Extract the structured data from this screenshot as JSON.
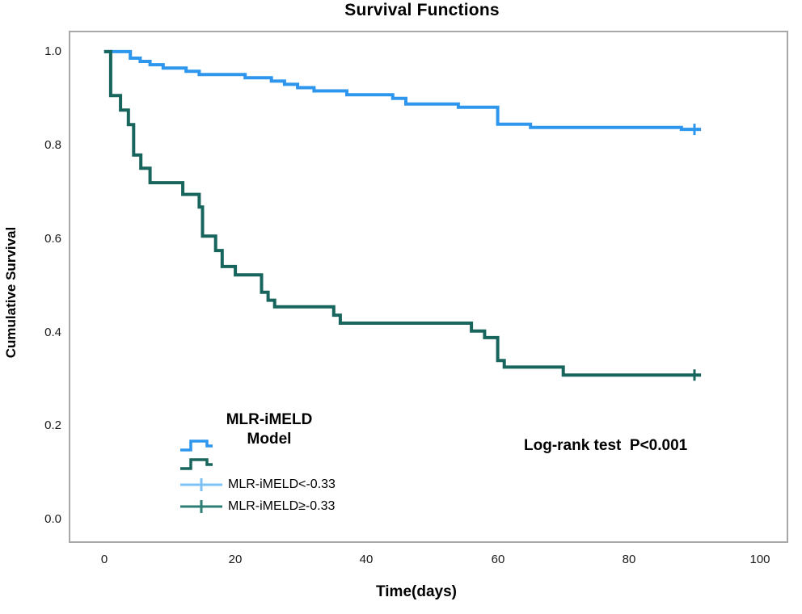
{
  "title": "Survival Functions",
  "axes": {
    "x_label": "Time(days)",
    "y_label": "Cumulative Survival",
    "x_ticks": [
      {
        "v": 0,
        "label": "0"
      },
      {
        "v": 20,
        "label": "20"
      },
      {
        "v": 40,
        "label": "40"
      },
      {
        "v": 60,
        "label": "60"
      },
      {
        "v": 80,
        "label": "80"
      },
      {
        "v": 100,
        "label": "100"
      }
    ],
    "y_ticks": [
      {
        "v": 0.0,
        "label": "0.0"
      },
      {
        "v": 0.2,
        "label": "0.2"
      },
      {
        "v": 0.4,
        "label": "0.4"
      },
      {
        "v": 0.6,
        "label": "0.6"
      },
      {
        "v": 0.8,
        "label": "0.8"
      },
      {
        "v": 1.0,
        "label": "1.0"
      }
    ]
  },
  "legend": {
    "title_line1": "MLR-iMELD",
    "title_line2": "Model",
    "items": [
      {
        "label": "MLR-iMELD<-0.33"
      },
      {
        "label": "MLR-iMELD≥-0.33"
      }
    ]
  },
  "annotation": {
    "log_rank": "Log-rank test  P<0.001"
  },
  "colors": {
    "curve_blue": "#2E96EC",
    "curve_teal": "#17655C",
    "censor_blue": "#7CC2F4",
    "censor_teal": "#2C7D73",
    "frame_border": "#a8a8a8"
  },
  "chart_data": {
    "type": "line",
    "subtype": "kaplan-meier-step",
    "title": "Survival Functions",
    "xlabel": "Time(days)",
    "ylabel": "Cumulative Survival",
    "xlim": [
      -5.15,
      104.05
    ],
    "ylim": [
      -0.046,
      1.0412
    ],
    "grid": false,
    "legend_position": "inside-lower-left",
    "series": [
      {
        "name": "MLR-iMELD<-0.33",
        "color": "#2E96EC",
        "end_x": 91,
        "censor_marks": [
          [
            90,
            0.834
          ]
        ],
        "points": [
          [
            0,
            1.0
          ],
          [
            4,
            0.986
          ],
          [
            5.5,
            0.979
          ],
          [
            7,
            0.972
          ],
          [
            9,
            0.965
          ],
          [
            12.5,
            0.958
          ],
          [
            14.5,
            0.951
          ],
          [
            21.5,
            0.944
          ],
          [
            25.5,
            0.937
          ],
          [
            27.5,
            0.93
          ],
          [
            29.5,
            0.923
          ],
          [
            32,
            0.916
          ],
          [
            37,
            0.908
          ],
          [
            44,
            0.9
          ],
          [
            46,
            0.888
          ],
          [
            54,
            0.881
          ],
          [
            60,
            0.845
          ],
          [
            65,
            0.838
          ],
          [
            88,
            0.834
          ]
        ]
      },
      {
        "name": "MLR-iMELD≥-0.33",
        "color": "#17655C",
        "end_x": 91,
        "censor_marks": [
          [
            90,
            0.309
          ]
        ],
        "points": [
          [
            0,
            1.0
          ],
          [
            1,
            0.906
          ],
          [
            2.5,
            0.875
          ],
          [
            3.7,
            0.844
          ],
          [
            4.5,
            0.779
          ],
          [
            5.6,
            0.751
          ],
          [
            7,
            0.72
          ],
          [
            12,
            0.695
          ],
          [
            14.5,
            0.668
          ],
          [
            15,
            0.606
          ],
          [
            17,
            0.575
          ],
          [
            18,
            0.541
          ],
          [
            20,
            0.523
          ],
          [
            24,
            0.486
          ],
          [
            25,
            0.469
          ],
          [
            26,
            0.455
          ],
          [
            35,
            0.437
          ],
          [
            36,
            0.42
          ],
          [
            56,
            0.403
          ],
          [
            58,
            0.389
          ],
          [
            60,
            0.34
          ],
          [
            61,
            0.326
          ],
          [
            70,
            0.309
          ]
        ]
      }
    ]
  }
}
